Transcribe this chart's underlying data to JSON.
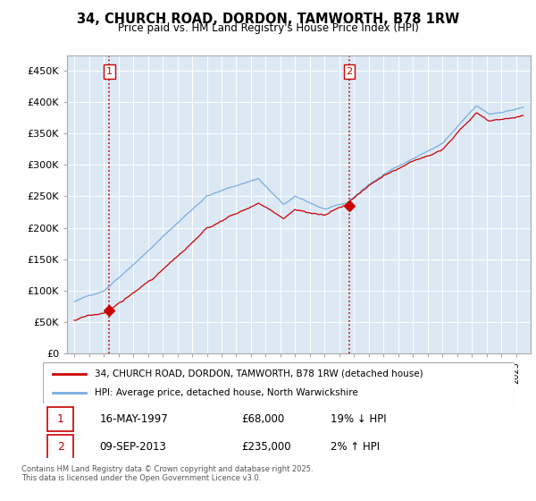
{
  "title_line1": "34, CHURCH ROAD, DORDON, TAMWORTH, B78 1RW",
  "title_line2": "Price paid vs. HM Land Registry's House Price Index (HPI)",
  "background_color": "#ffffff",
  "plot_bg_color": "#dce9f5",
  "grid_color": "#ffffff",
  "sale1_date_num": 1997.37,
  "sale1_price": 68000,
  "sale1_label": "1",
  "sale2_date_num": 2013.68,
  "sale2_price": 235000,
  "sale2_label": "2",
  "hpi_color": "#7aade0",
  "price_color": "#cc0000",
  "dashed_line_color": "#cc0000",
  "legend_label1": "34, CHURCH ROAD, DORDON, TAMWORTH, B78 1RW (detached house)",
  "legend_label2": "HPI: Average price, detached house, North Warwickshire",
  "table_row1": [
    "1",
    "16-MAY-1997",
    "£68,000",
    "19% ↓ HPI"
  ],
  "table_row2": [
    "2",
    "09-SEP-2013",
    "£235,000",
    "2% ↑ HPI"
  ],
  "footnote": "Contains HM Land Registry data © Crown copyright and database right 2025.\nThis data is licensed under the Open Government Licence v3.0.",
  "ylim_max": 475000,
  "xlim_min": 1994.5,
  "xlim_max": 2026.0
}
